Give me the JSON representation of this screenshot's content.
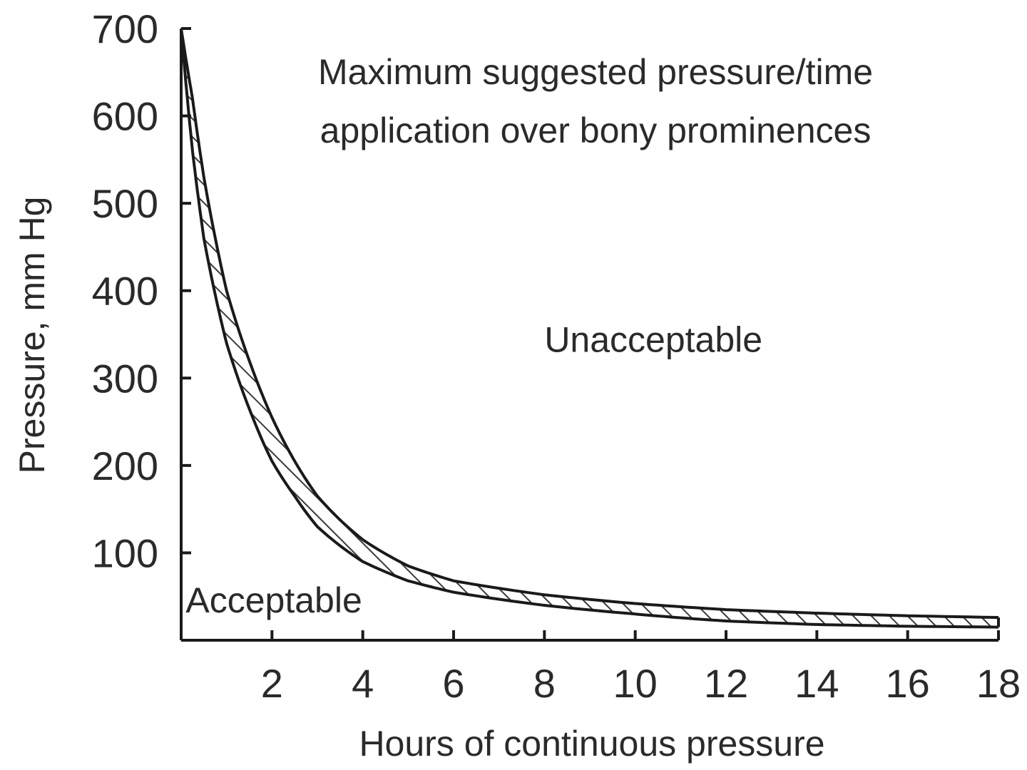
{
  "chart_data": {
    "type": "area",
    "title": "Maximum suggested pressure/time application over bony prominences",
    "title_lines": [
      "Maximum suggested pressure/time",
      "application over bony prominences"
    ],
    "xlabel": "Hours of continuous pressure",
    "ylabel": "Pressure, mm Hg",
    "xlim": [
      0,
      18
    ],
    "ylim": [
      0,
      700
    ],
    "x_ticks": [
      2,
      4,
      6,
      8,
      10,
      12,
      14,
      16,
      18
    ],
    "x_tick_labels": [
      "2",
      "4",
      "6",
      "8",
      "10",
      "12",
      "14",
      "16",
      "18"
    ],
    "y_ticks": [
      100,
      200,
      300,
      400,
      500,
      600,
      700
    ],
    "y_tick_labels": [
      "100",
      "200",
      "300",
      "400",
      "500",
      "600",
      "700"
    ],
    "grid": false,
    "legend": "none",
    "band_fill": "hatched",
    "colors": {
      "line": "#1a1a1a",
      "hatch": "#3a3a3a",
      "text": "#2a2a2a",
      "background": "#ffffff"
    },
    "series": [
      {
        "x": [
          0,
          0.25,
          0.5,
          1,
          1.5,
          2,
          2.5,
          3,
          4,
          5,
          6,
          8,
          10,
          12,
          14,
          16,
          18
        ],
        "y": [
          700,
          620,
          530,
          400,
          320,
          255,
          205,
          165,
          115,
          85,
          68,
          52,
          42,
          35,
          31,
          28,
          26
        ]
      },
      {
        "x": [
          0,
          0.25,
          0.5,
          1,
          1.5,
          2,
          2.5,
          3,
          4,
          5,
          6,
          8,
          10,
          12,
          14,
          16,
          18
        ],
        "y": [
          700,
          560,
          460,
          340,
          265,
          205,
          165,
          130,
          90,
          68,
          55,
          40,
          30,
          22,
          18,
          16,
          15
        ]
      }
    ],
    "annotations": [
      {
        "text": "Unacceptable",
        "x": 8,
        "y": 330
      },
      {
        "text": "Acceptable",
        "x": 0.1,
        "y": 32
      }
    ]
  }
}
